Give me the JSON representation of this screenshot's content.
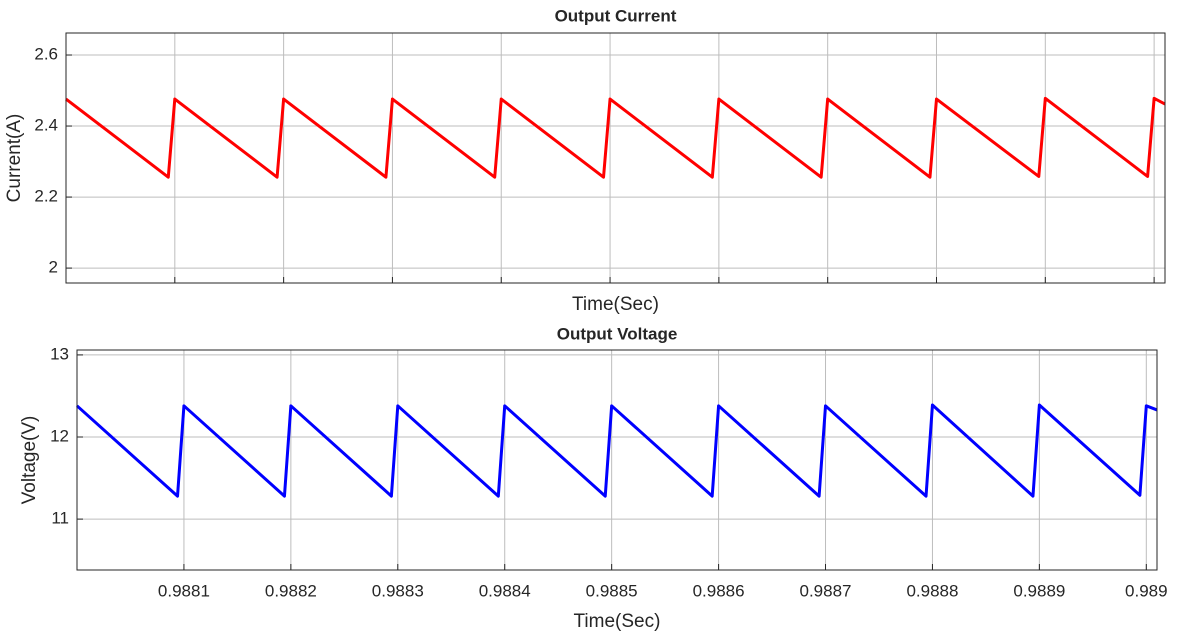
{
  "chart_data": [
    {
      "type": "line",
      "title": "Output Current",
      "xlabel": "Time(Sec)",
      "ylabel": "Current(A)",
      "x": [
        0.988,
        0.988094,
        0.9881,
        0.988194,
        0.9882,
        0.988294,
        0.9883,
        0.988394,
        0.9884,
        0.988494,
        0.9885,
        0.988594,
        0.9886,
        0.988694,
        0.9887,
        0.988794,
        0.9888,
        0.988894,
        0.9889,
        0.988994,
        0.989,
        0.98901
      ],
      "series": [
        {
          "color": "#ff0000",
          "values": [
            2.476,
            2.256,
            2.476,
            2.256,
            2.476,
            2.256,
            2.476,
            2.256,
            2.476,
            2.256,
            2.476,
            2.256,
            2.476,
            2.256,
            2.476,
            2.256,
            2.476,
            2.258,
            2.478,
            2.258,
            2.478,
            2.462
          ]
        }
      ],
      "xlim": [
        0.988,
        0.98901
      ],
      "ylim": [
        1.958,
        2.662
      ],
      "xticks": [
        0.9881,
        0.9882,
        0.9883,
        0.9884,
        0.9885,
        0.9886,
        0.9887,
        0.9888,
        0.9889,
        0.989
      ],
      "yticks": [
        2,
        2.2,
        2.4,
        2.6
      ],
      "grid": true,
      "show_xticklabels": false
    },
    {
      "type": "line",
      "title": "Output Voltage",
      "xlabel": "Time(Sec)",
      "ylabel": "Voltage(V)",
      "x": [
        0.988,
        0.988094,
        0.9881,
        0.988194,
        0.9882,
        0.988294,
        0.9883,
        0.988394,
        0.9884,
        0.988494,
        0.9885,
        0.988594,
        0.9886,
        0.988694,
        0.9887,
        0.988794,
        0.9888,
        0.988894,
        0.9889,
        0.988994,
        0.989,
        0.98901
      ],
      "series": [
        {
          "color": "#0000ff",
          "values": [
            12.38,
            11.28,
            12.38,
            11.28,
            12.38,
            11.28,
            12.38,
            11.28,
            12.38,
            11.28,
            12.38,
            11.28,
            12.38,
            11.28,
            12.38,
            11.28,
            12.39,
            11.28,
            12.39,
            11.29,
            12.38,
            12.33
          ]
        }
      ],
      "xlim": [
        0.988,
        0.98901
      ],
      "ylim": [
        10.38,
        13.06
      ],
      "xticks": [
        0.9881,
        0.9882,
        0.9883,
        0.9884,
        0.9885,
        0.9886,
        0.9887,
        0.9888,
        0.9889,
        0.989
      ],
      "yticks": [
        11,
        12,
        13
      ],
      "grid": true,
      "show_xticklabels": true
    }
  ]
}
